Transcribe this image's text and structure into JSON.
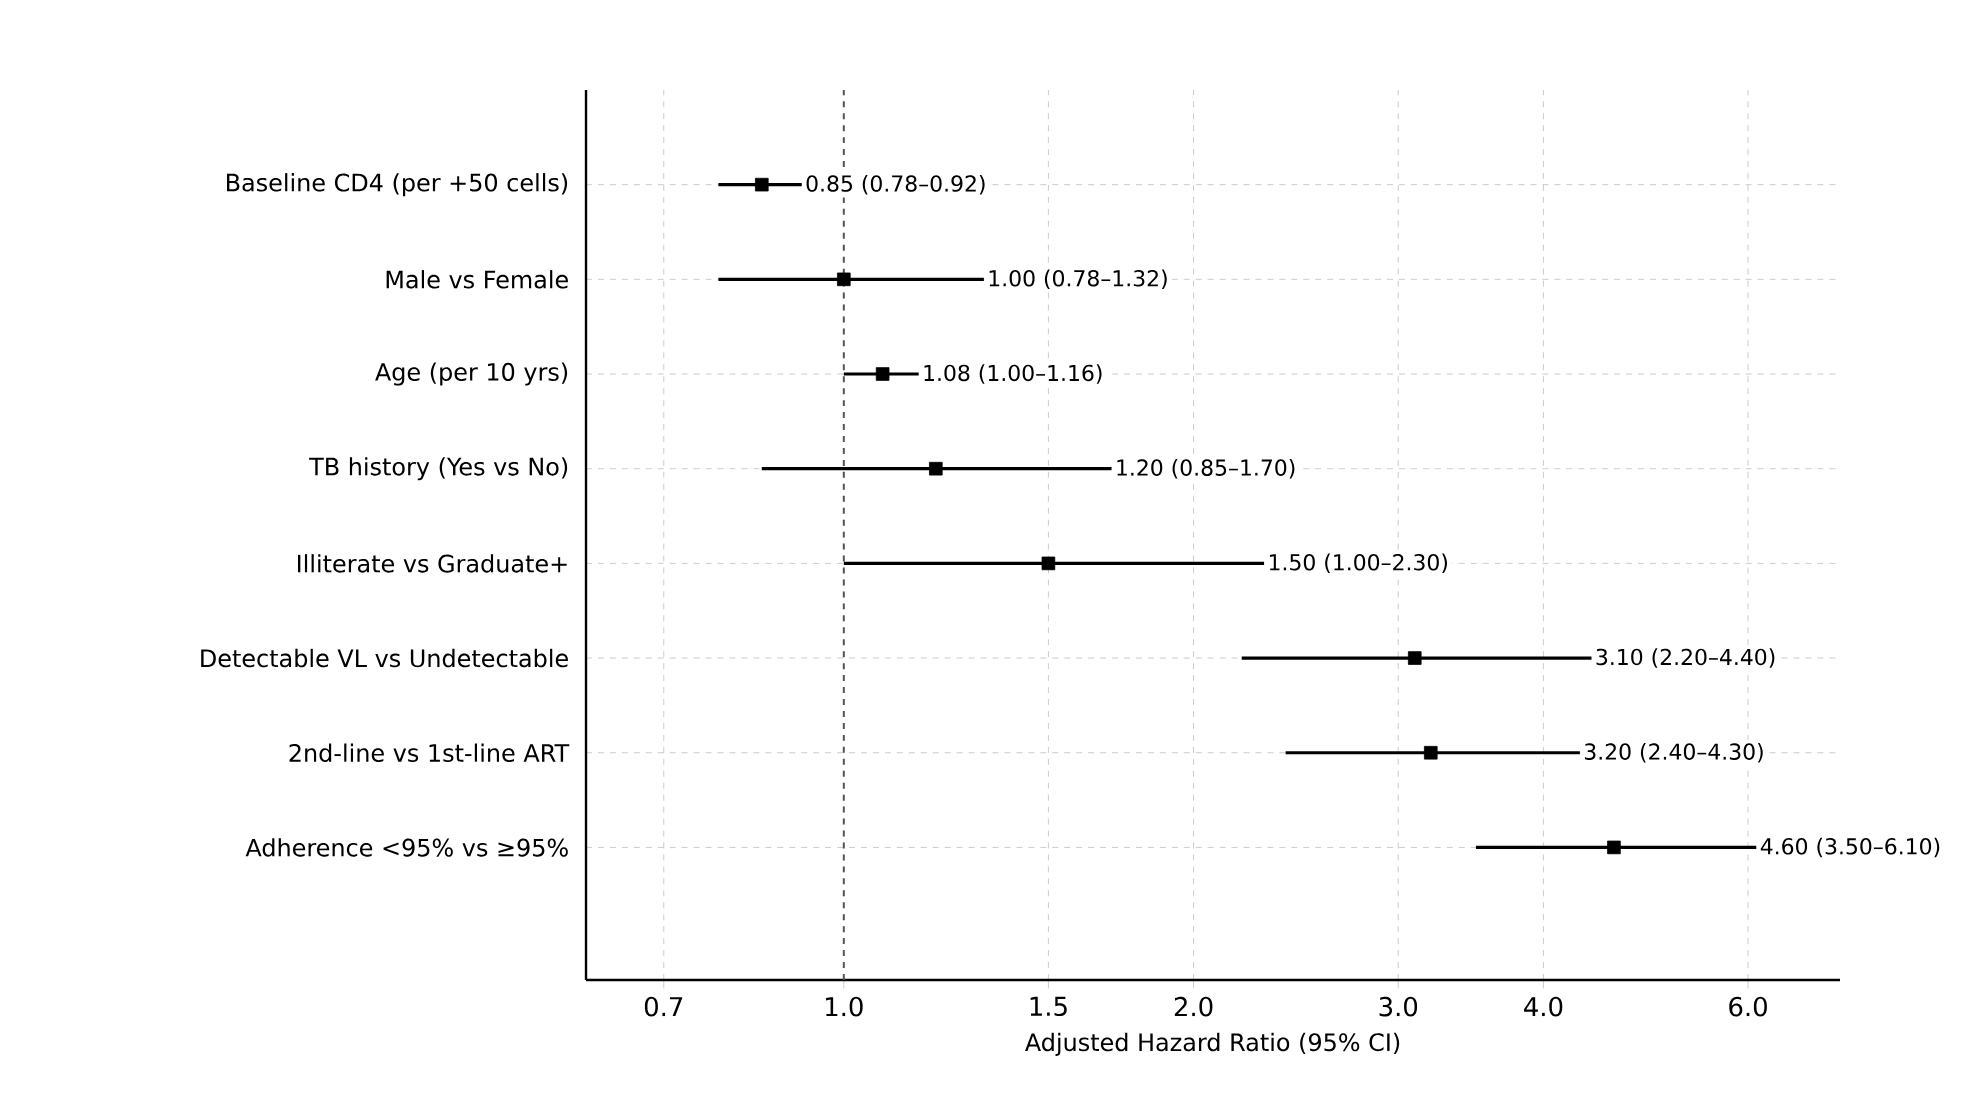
{
  "chart_data": {
    "type": "scatter",
    "orientation": "horizontal",
    "xlabel": "Adjusted Hazard Ratio (95% CI)",
    "categories": [
      "Baseline CD4 (per +50 cells)",
      "Male vs Female",
      "Age (per 10 yrs)",
      "TB history (Yes vs No)",
      "Illiterate vs Graduate+",
      "Detectable VL vs Undetectable",
      "2nd-line vs 1st-line ART",
      "Adherence <95% vs ≥95%"
    ],
    "values": [
      0.85,
      1.0,
      1.08,
      1.2,
      1.5,
      3.1,
      3.2,
      4.6
    ],
    "errors": [
      [
        0.78,
        0.92
      ],
      [
        0.78,
        1.32
      ],
      [
        1.0,
        1.16
      ],
      [
        0.85,
        1.7
      ],
      [
        1.0,
        2.3
      ],
      [
        2.2,
        4.4
      ],
      [
        2.4,
        4.3
      ],
      [
        3.5,
        6.1
      ]
    ],
    "annotations": [
      {
        "text": "0.85 (0.78–0.92)",
        "x": 0.92,
        "y": "Baseline CD4 (per +50 cells)"
      },
      {
        "text": "1.00 (0.78–1.32)",
        "x": 1.32,
        "y": "Male vs Female"
      },
      {
        "text": "1.08 (1.00–1.16)",
        "x": 1.16,
        "y": "Age (per 10 yrs)"
      },
      {
        "text": "1.20 (0.85–1.70)",
        "x": 1.7,
        "y": "TB history (Yes vs No)"
      },
      {
        "text": "1.50 (1.00–2.30)",
        "x": 2.3,
        "y": "Illiterate vs Graduate+"
      },
      {
        "text": "3.10 (2.20–4.40)",
        "x": 4.4,
        "y": "Detectable VL vs Undetectable"
      },
      {
        "text": "3.20 (2.40–4.30)",
        "x": 4.3,
        "y": "2nd-line vs 1st-line ART"
      },
      {
        "text": "4.60 (3.50–6.10)",
        "x": 6.1,
        "y": "Adherence <95% vs ≥95%"
      }
    ],
    "color": "#000000",
    "marker": "square",
    "log": "x",
    "grid": true,
    "xlim": [
      0.6,
      7.2
    ],
    "xticks": [
      0.7,
      {
        "value": 1,
        "label": "1.0"
      },
      1.5,
      {
        "value": 2,
        "label": "2.0"
      },
      {
        "value": 3,
        "label": "3.0"
      },
      {
        "value": 4,
        "label": "4.0"
      },
      {
        "value": 6,
        "label": "6.0"
      }
    ],
    "ref_lines": [
      {
        "axis": "x",
        "value": 1,
        "color": "#555555",
        "line_style": "dashed"
      }
    ]
  }
}
